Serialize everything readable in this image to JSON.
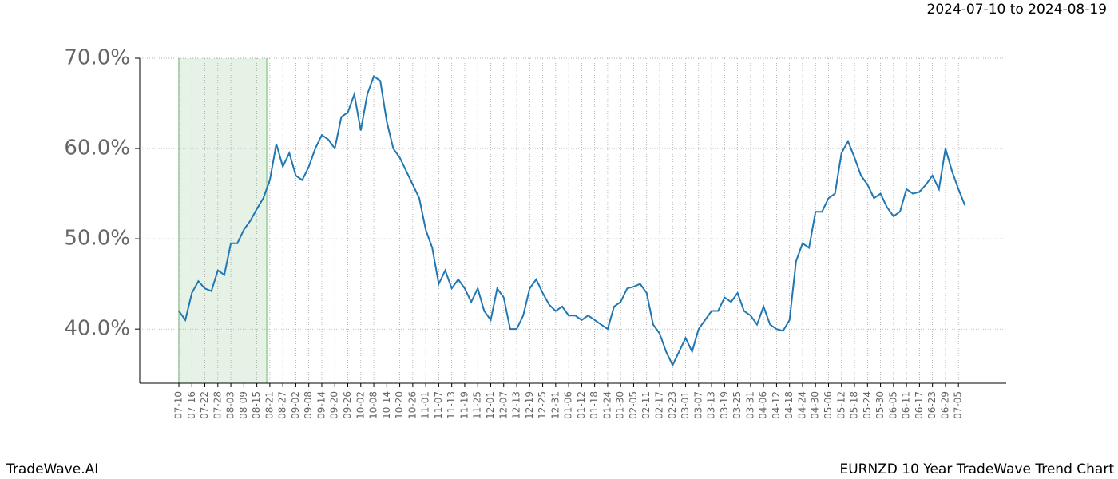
{
  "header": {
    "date_range": "2024-07-10 to 2024-08-19"
  },
  "footer": {
    "brand": "TradeWave.AI",
    "chart_name": "EURNZD 10 Year TradeWave Trend Chart"
  },
  "chart_data": {
    "type": "line",
    "categories": [
      "07-10",
      null,
      "07-16",
      null,
      "07-22",
      null,
      "07-28",
      null,
      "08-03",
      null,
      "08-09",
      null,
      "08-15",
      null,
      "08-21",
      null,
      "08-27",
      null,
      "09-02",
      null,
      "09-08",
      null,
      "09-14",
      null,
      "09-20",
      null,
      "09-26",
      null,
      "10-02",
      null,
      "10-08",
      null,
      "10-14",
      null,
      "10-20",
      null,
      "10-26",
      null,
      "11-01",
      null,
      "11-07",
      null,
      "11-13",
      null,
      "11-19",
      null,
      "11-25",
      null,
      "12-01",
      null,
      "12-07",
      null,
      "12-13",
      null,
      "12-19",
      null,
      "12-25",
      null,
      "12-31",
      null,
      "01-06",
      null,
      "01-12",
      null,
      "01-18",
      null,
      "01-24",
      null,
      "01-30",
      null,
      "02-05",
      null,
      "02-11",
      null,
      "02-17",
      null,
      "02-23",
      null,
      "03-01",
      null,
      "03-07",
      null,
      "03-13",
      null,
      "03-19",
      null,
      "03-25",
      null,
      "03-31",
      null,
      "04-06",
      null,
      "04-12",
      null,
      "04-18",
      null,
      "04-24",
      null,
      "04-30",
      null,
      "05-06",
      null,
      "05-12",
      null,
      "05-18",
      null,
      "05-24",
      null,
      "05-30",
      null,
      "06-05",
      null,
      "06-11",
      null,
      "06-17",
      null,
      "06-23",
      null,
      "06-29",
      null,
      "07-05",
      null
    ],
    "series": [
      {
        "color": "#1f77b4",
        "values": [
          42,
          41,
          44,
          45.3,
          44.5,
          44.2,
          46.5,
          46,
          49.5,
          49.5,
          51,
          52,
          53.3,
          54.5,
          56.5,
          60.5,
          58,
          59.5,
          57,
          56.5,
          58,
          60,
          61.5,
          61,
          60,
          63.5,
          64,
          66,
          62,
          66,
          68,
          67.5,
          63,
          60,
          59,
          57.5,
          56,
          54.5,
          51,
          49,
          45,
          46.5,
          44.5,
          45.5,
          44.5,
          43,
          44.5,
          42,
          41,
          44.5,
          43.5,
          40,
          40,
          41.5,
          44.5,
          45.5,
          44,
          42.7,
          42,
          42.5,
          41.5,
          41.5,
          41,
          41.5,
          41,
          40.5,
          40,
          42.5,
          43,
          44.5,
          44.7,
          45,
          44,
          40.5,
          39.5,
          37.5,
          36,
          37.5,
          39,
          37.5,
          40,
          41,
          42,
          42,
          43.5,
          43,
          44,
          42,
          41.5,
          40.5,
          42.5,
          40.5,
          40,
          39.8,
          41,
          47.5,
          49.5,
          49,
          53,
          53,
          54.5,
          55,
          59.5,
          60.8,
          59,
          57,
          56,
          54.5,
          55,
          53.5,
          52.5,
          53,
          55.5,
          55,
          55.2,
          56,
          57,
          55.5,
          60,
          57.5,
          55.5,
          53.7
        ]
      }
    ],
    "ylim": [
      34,
      70
    ],
    "yticks": [
      {
        "value": 40,
        "label": "40.0%"
      },
      {
        "value": 50,
        "label": "50.0%"
      },
      {
        "value": 60,
        "label": "60.0%"
      },
      {
        "value": 70,
        "label": "70.0%"
      }
    ],
    "grid": true
  }
}
